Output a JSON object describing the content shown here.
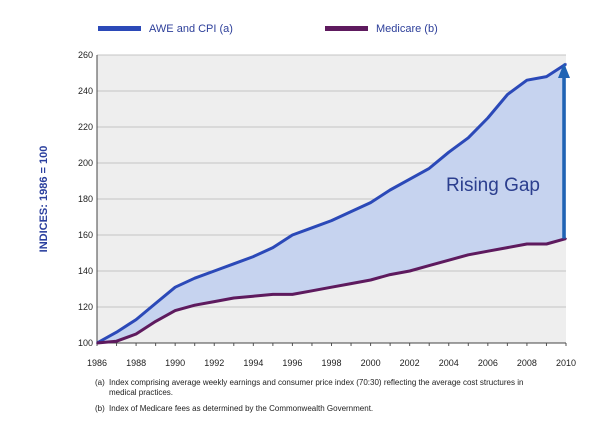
{
  "chart_data": {
    "type": "area",
    "ylabel": "INDICES: 1986 = 100",
    "xlim": [
      1986,
      2010
    ],
    "ylim": [
      100,
      260
    ],
    "yticks": [
      100,
      120,
      140,
      160,
      180,
      200,
      220,
      240,
      260
    ],
    "xticks": [
      1986,
      1988,
      1990,
      1992,
      1994,
      1996,
      1998,
      2000,
      2002,
      2004,
      2006,
      2008,
      2010
    ],
    "grid": "horizontal",
    "legend": "top",
    "series": [
      {
        "name": "AWE and CPI (a)",
        "color": "#2b49b8",
        "x": [
          1986,
          1987,
          1988,
          1989,
          1990,
          1991,
          1992,
          1993,
          1994,
          1995,
          1996,
          1997,
          1998,
          1999,
          2000,
          2001,
          2002,
          2003,
          2004,
          2005,
          2006,
          2007,
          2008,
          2009,
          2010
        ],
        "y": [
          100,
          106,
          113,
          122,
          131,
          136,
          140,
          144,
          148,
          153,
          160,
          164,
          168,
          173,
          178,
          185,
          191,
          197,
          206,
          214,
          225,
          238,
          246,
          248,
          255
        ]
      },
      {
        "name": "Medicare (b)",
        "color": "#5e1a5e",
        "x": [
          1986,
          1987,
          1988,
          1989,
          1990,
          1991,
          1992,
          1993,
          1994,
          1995,
          1996,
          1997,
          1998,
          1999,
          2000,
          2001,
          2002,
          2003,
          2004,
          2005,
          2006,
          2007,
          2008,
          2009,
          2010
        ],
        "y": [
          100,
          101,
          105,
          112,
          118,
          121,
          123,
          125,
          126,
          127,
          127,
          129,
          131,
          133,
          135,
          138,
          140,
          143,
          146,
          149,
          151,
          153,
          155,
          155,
          158
        ]
      }
    ],
    "gap_fill_color": "#c6d3ef",
    "annotation": {
      "text": "Rising Gap",
      "arrow_x": 2010,
      "arrow_from": 158,
      "arrow_to": 255,
      "color": "#1f63b4"
    }
  },
  "notes": [
    {
      "tag": "(a)",
      "text": "Index comprising average weekly earnings and consumer price index (70:30) reflecting the average cost structures in medical practices."
    },
    {
      "tag": "(b)",
      "text": "Index of Medicare fees as determined by the Commonwealth Government."
    }
  ]
}
